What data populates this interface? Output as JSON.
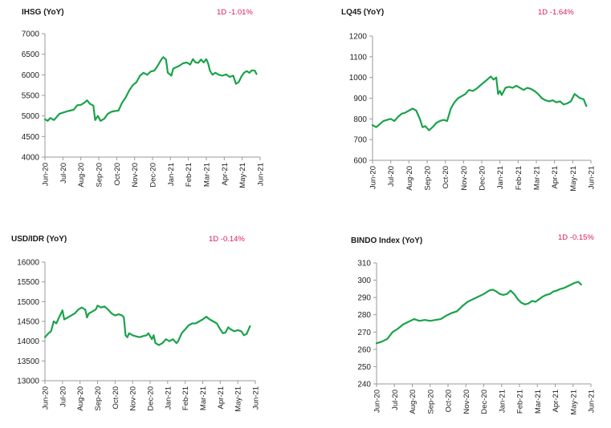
{
  "line_color": "#1aa34a",
  "chart_data": [
    {
      "type": "line",
      "title": "IHSG (YoY)",
      "change": "1D -1.01%",
      "ylim": [
        4000,
        7000
      ],
      "yticks": [
        4000,
        4500,
        5000,
        5500,
        6000,
        6500,
        7000
      ],
      "xticks": [
        "Jun-20",
        "Jul-20",
        "Aug-20",
        "Sep-20",
        "Oct-20",
        "Nov-20",
        "Dec-20",
        "Jan-21",
        "Feb-21",
        "Mar-21",
        "Apr-21",
        "May-21",
        "Jun-21"
      ],
      "grid": false,
      "series": [
        {
          "values": [
            [
              0,
              4920
            ],
            [
              0.15,
              4880
            ],
            [
              0.3,
              4950
            ],
            [
              0.5,
              4900
            ],
            [
              0.8,
              5050
            ],
            [
              1.0,
              5080
            ],
            [
              1.3,
              5120
            ],
            [
              1.6,
              5150
            ],
            [
              1.8,
              5260
            ],
            [
              2.0,
              5270
            ],
            [
              2.2,
              5320
            ],
            [
              2.35,
              5380
            ],
            [
              2.5,
              5300
            ],
            [
              2.7,
              5250
            ],
            [
              2.8,
              4900
            ],
            [
              2.95,
              5000
            ],
            [
              3.1,
              4880
            ],
            [
              3.3,
              4930
            ],
            [
              3.5,
              5050
            ],
            [
              3.7,
              5100
            ],
            [
              3.9,
              5120
            ],
            [
              4.1,
              5130
            ],
            [
              4.3,
              5320
            ],
            [
              4.5,
              5450
            ],
            [
              4.7,
              5620
            ],
            [
              4.9,
              5750
            ],
            [
              5.1,
              5820
            ],
            [
              5.3,
              5980
            ],
            [
              5.5,
              6050
            ],
            [
              5.7,
              6000
            ],
            [
              5.9,
              6080
            ],
            [
              6.1,
              6100
            ],
            [
              6.3,
              6230
            ],
            [
              6.5,
              6380
            ],
            [
              6.6,
              6430
            ],
            [
              6.75,
              6370
            ],
            [
              6.85,
              6050
            ],
            [
              6.95,
              6020
            ],
            [
              7.05,
              5980
            ],
            [
              7.15,
              6150
            ],
            [
              7.3,
              6180
            ],
            [
              7.5,
              6220
            ],
            [
              7.7,
              6280
            ],
            [
              7.9,
              6300
            ],
            [
              8.1,
              6250
            ],
            [
              8.25,
              6380
            ],
            [
              8.4,
              6300
            ],
            [
              8.55,
              6290
            ],
            [
              8.7,
              6370
            ],
            [
              8.85,
              6300
            ],
            [
              9.0,
              6380
            ],
            [
              9.1,
              6280
            ],
            [
              9.2,
              6100
            ],
            [
              9.35,
              6000
            ],
            [
              9.5,
              6050
            ],
            [
              9.7,
              6000
            ],
            [
              9.9,
              5980
            ],
            [
              10.1,
              6010
            ],
            [
              10.3,
              5950
            ],
            [
              10.5,
              5980
            ],
            [
              10.65,
              5780
            ],
            [
              10.8,
              5820
            ],
            [
              10.95,
              5950
            ],
            [
              11.1,
              6050
            ],
            [
              11.25,
              6090
            ],
            [
              11.4,
              6050
            ],
            [
              11.55,
              6110
            ],
            [
              11.7,
              6100
            ],
            [
              11.8,
              6020
            ]
          ]
        }
      ]
    },
    {
      "type": "line",
      "title": "LQ45 (YoY)",
      "change": "1D -1.64%",
      "ylim": [
        600,
        1200
      ],
      "yticks": [
        600,
        700,
        800,
        900,
        1000,
        1100,
        1200
      ],
      "xticks": [
        "Jun-20",
        "Jul-20",
        "Aug-20",
        "Sep-20",
        "Oct-20",
        "Nov-20",
        "Dec-20",
        "Jan-21",
        "Feb-21",
        "Mar-21",
        "Apr-21",
        "May-21",
        "Jun-21"
      ],
      "grid": false,
      "series": [
        {
          "values": [
            [
              0,
              770
            ],
            [
              0.2,
              760
            ],
            [
              0.4,
              775
            ],
            [
              0.6,
              790
            ],
            [
              0.8,
              795
            ],
            [
              1.0,
              800
            ],
            [
              1.2,
              790
            ],
            [
              1.4,
              810
            ],
            [
              1.6,
              825
            ],
            [
              1.8,
              830
            ],
            [
              2.0,
              840
            ],
            [
              2.2,
              850
            ],
            [
              2.4,
              840
            ],
            [
              2.6,
              800
            ],
            [
              2.75,
              760
            ],
            [
              2.9,
              765
            ],
            [
              3.1,
              745
            ],
            [
              3.3,
              760
            ],
            [
              3.5,
              780
            ],
            [
              3.7,
              790
            ],
            [
              3.9,
              795
            ],
            [
              4.1,
              790
            ],
            [
              4.3,
              850
            ],
            [
              4.5,
              880
            ],
            [
              4.7,
              900
            ],
            [
              4.9,
              910
            ],
            [
              5.1,
              920
            ],
            [
              5.3,
              940
            ],
            [
              5.5,
              935
            ],
            [
              5.7,
              945
            ],
            [
              5.9,
              960
            ],
            [
              6.1,
              975
            ],
            [
              6.3,
              990
            ],
            [
              6.5,
              1005
            ],
            [
              6.65,
              990
            ],
            [
              6.8,
              1000
            ],
            [
              6.9,
              920
            ],
            [
              7.0,
              935
            ],
            [
              7.1,
              915
            ],
            [
              7.3,
              950
            ],
            [
              7.5,
              955
            ],
            [
              7.7,
              950
            ],
            [
              7.9,
              960
            ],
            [
              8.1,
              950
            ],
            [
              8.3,
              940
            ],
            [
              8.5,
              950
            ],
            [
              8.7,
              945
            ],
            [
              8.9,
              935
            ],
            [
              9.1,
              920
            ],
            [
              9.3,
              900
            ],
            [
              9.5,
              890
            ],
            [
              9.7,
              885
            ],
            [
              9.9,
              890
            ],
            [
              10.1,
              880
            ],
            [
              10.3,
              885
            ],
            [
              10.5,
              870
            ],
            [
              10.7,
              875
            ],
            [
              10.9,
              885
            ],
            [
              11.1,
              920
            ],
            [
              11.25,
              910
            ],
            [
              11.4,
              900
            ],
            [
              11.6,
              895
            ],
            [
              11.75,
              862
            ]
          ]
        }
      ]
    },
    {
      "type": "line",
      "title": "USD/IDR  (YoY)",
      "change": "1D -0.14%",
      "ylim": [
        13000,
        16000
      ],
      "yticks": [
        13000,
        13500,
        14000,
        14500,
        15000,
        15500,
        16000
      ],
      "xticks": [
        "Jun-20",
        "Jul-20",
        "Aug-20",
        "Sep-20",
        "Oct-20",
        "Nov-20",
        "Dec-20",
        "Jan-21",
        "Feb-21",
        "Mar-21",
        "Apr-21",
        "May-21",
        "Jun-21"
      ],
      "grid": false,
      "series": [
        {
          "values": [
            [
              0,
              14100
            ],
            [
              0.2,
              14200
            ],
            [
              0.35,
              14250
            ],
            [
              0.5,
              14500
            ],
            [
              0.65,
              14450
            ],
            [
              0.8,
              14600
            ],
            [
              1.0,
              14780
            ],
            [
              1.1,
              14550
            ],
            [
              1.3,
              14600
            ],
            [
              1.5,
              14650
            ],
            [
              1.7,
              14700
            ],
            [
              1.9,
              14800
            ],
            [
              2.1,
              14850
            ],
            [
              2.3,
              14800
            ],
            [
              2.4,
              14600
            ],
            [
              2.5,
              14700
            ],
            [
              2.7,
              14750
            ],
            [
              2.9,
              14800
            ],
            [
              3.0,
              14900
            ],
            [
              3.2,
              14850
            ],
            [
              3.4,
              14880
            ],
            [
              3.6,
              14800
            ],
            [
              3.8,
              14700
            ],
            [
              4.0,
              14650
            ],
            [
              4.2,
              14680
            ],
            [
              4.4,
              14650
            ],
            [
              4.5,
              14600
            ],
            [
              4.6,
              14150
            ],
            [
              4.7,
              14100
            ],
            [
              4.8,
              14200
            ],
            [
              5.0,
              14150
            ],
            [
              5.2,
              14120
            ],
            [
              5.4,
              14100
            ],
            [
              5.6,
              14130
            ],
            [
              5.8,
              14150
            ],
            [
              5.9,
              14200
            ],
            [
              6.1,
              14050
            ],
            [
              6.2,
              14150
            ],
            [
              6.3,
              13950
            ],
            [
              6.5,
              13900
            ],
            [
              6.7,
              13950
            ],
            [
              6.9,
              14050
            ],
            [
              7.1,
              14000
            ],
            [
              7.3,
              14050
            ],
            [
              7.5,
              13950
            ],
            [
              7.6,
              14000
            ],
            [
              7.8,
              14200
            ],
            [
              8.0,
              14300
            ],
            [
              8.2,
              14400
            ],
            [
              8.4,
              14450
            ],
            [
              8.6,
              14450
            ],
            [
              8.8,
              14500
            ],
            [
              9.0,
              14550
            ],
            [
              9.2,
              14620
            ],
            [
              9.4,
              14550
            ],
            [
              9.6,
              14500
            ],
            [
              9.8,
              14450
            ],
            [
              10.0,
              14300
            ],
            [
              10.15,
              14200
            ],
            [
              10.3,
              14220
            ],
            [
              10.45,
              14350
            ],
            [
              10.6,
              14300
            ],
            [
              10.8,
              14250
            ],
            [
              11.0,
              14280
            ],
            [
              11.2,
              14250
            ],
            [
              11.35,
              14150
            ],
            [
              11.5,
              14180
            ],
            [
              11.7,
              14380
            ]
          ]
        }
      ]
    },
    {
      "type": "line",
      "title": "BINDO Index (YoY)",
      "change": "1D -0.15%",
      "ylim": [
        240,
        310
      ],
      "yticks": [
        240,
        250,
        260,
        270,
        280,
        290,
        300,
        310
      ],
      "xticks": [
        "Jun-20",
        "Jul-20",
        "Aug-20",
        "Sep-20",
        "Oct-20",
        "Nov-20",
        "Dec-20",
        "Jan-21",
        "Feb-21",
        "Mar-21",
        "Apr-21",
        "May-21",
        "Jun-21"
      ],
      "grid": false,
      "series": [
        {
          "values": [
            [
              0,
              263.5
            ],
            [
              0.3,
              264.5
            ],
            [
              0.6,
              266
            ],
            [
              0.9,
              270
            ],
            [
              1.2,
              272
            ],
            [
              1.5,
              274.5
            ],
            [
              1.8,
              276
            ],
            [
              2.1,
              277.5
            ],
            [
              2.4,
              276.5
            ],
            [
              2.7,
              277
            ],
            [
              3.0,
              276.5
            ],
            [
              3.3,
              277
            ],
            [
              3.6,
              277.5
            ],
            [
              3.9,
              279.5
            ],
            [
              4.2,
              281
            ],
            [
              4.5,
              282
            ],
            [
              4.8,
              285
            ],
            [
              5.1,
              287.5
            ],
            [
              5.4,
              289
            ],
            [
              5.7,
              290.5
            ],
            [
              6.0,
              292
            ],
            [
              6.3,
              294
            ],
            [
              6.5,
              294.5
            ],
            [
              6.7,
              293.5
            ],
            [
              6.9,
              292
            ],
            [
              7.1,
              291.5
            ],
            [
              7.3,
              292
            ],
            [
              7.5,
              294
            ],
            [
              7.7,
              292
            ],
            [
              7.9,
              289
            ],
            [
              8.1,
              287
            ],
            [
              8.3,
              286
            ],
            [
              8.5,
              286.5
            ],
            [
              8.7,
              288
            ],
            [
              8.9,
              287.5
            ],
            [
              9.1,
              289
            ],
            [
              9.3,
              290.5
            ],
            [
              9.5,
              291.5
            ],
            [
              9.7,
              292
            ],
            [
              9.9,
              293.5
            ],
            [
              10.1,
              294
            ],
            [
              10.3,
              295
            ],
            [
              10.5,
              295.5
            ],
            [
              10.7,
              296.5
            ],
            [
              10.9,
              297.5
            ],
            [
              11.1,
              298.5
            ],
            [
              11.3,
              299
            ],
            [
              11.45,
              297.5
            ]
          ]
        }
      ]
    }
  ]
}
